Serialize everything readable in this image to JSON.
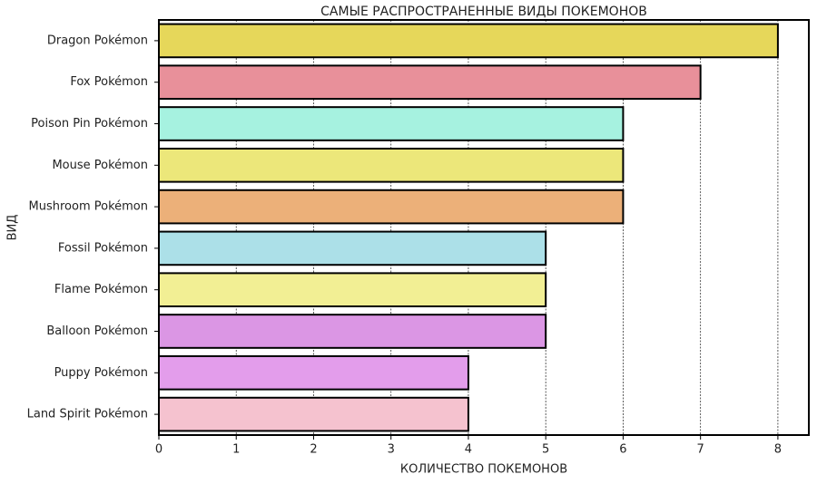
{
  "chart_data": {
    "type": "barh",
    "title": "САМЫЕ РАСПРОСТРАНЕННЫЕ ВИДЫ ПОКЕМОНОВ",
    "x_label": "КОЛИЧЕСТВО ПОКЕМОНОВ",
    "y_label": "ВИД",
    "categories": [
      "Dragon Pokémon",
      "Fox Pokémon",
      "Poison Pin Pokémon",
      "Mouse Pokémon",
      "Mushroom Pokémon",
      "Fossil Pokémon",
      "Flame Pokémon",
      "Balloon Pokémon",
      "Puppy Pokémon",
      "Land Spirit Pokémon"
    ],
    "values": [
      8,
      7,
      6,
      6,
      6,
      5,
      5,
      5,
      4,
      4
    ],
    "colors": [
      "#e6d75a",
      "#e8909a",
      "#a6f2e0",
      "#ece77a",
      "#ecb079",
      "#ace0e8",
      "#f2ef94",
      "#db96e4",
      "#e39deb",
      "#f5c2cf"
    ],
    "xlim": [
      0,
      8.4
    ],
    "xticks": [
      0,
      1,
      2,
      3,
      4,
      5,
      6,
      7,
      8
    ],
    "grid": true
  }
}
